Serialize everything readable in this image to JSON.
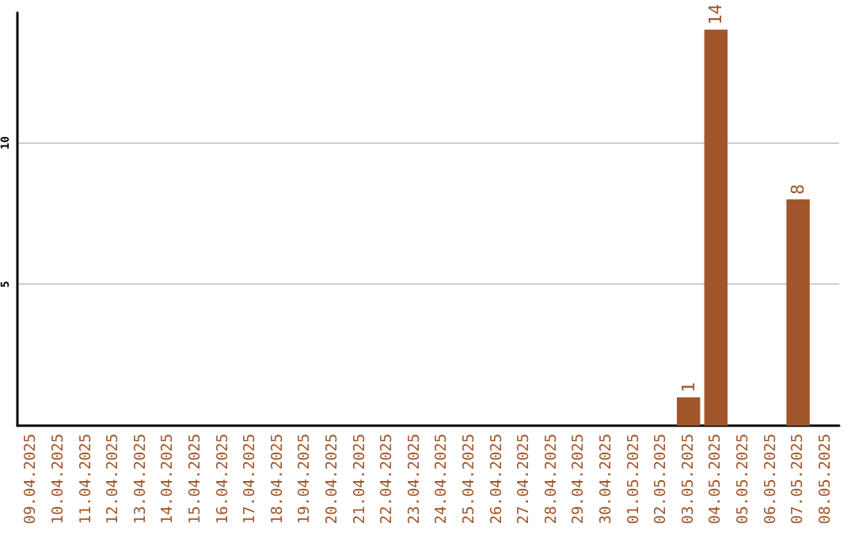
{
  "chart_data": {
    "type": "bar",
    "categories": [
      "09.04.2025",
      "10.04.2025",
      "11.04.2025",
      "12.04.2025",
      "13.04.2025",
      "14.04.2025",
      "15.04.2025",
      "16.04.2025",
      "17.04.2025",
      "18.04.2025",
      "19.04.2025",
      "20.04.2025",
      "21.04.2025",
      "22.04.2025",
      "23.04.2025",
      "24.04.2025",
      "25.04.2025",
      "26.04.2025",
      "27.04.2025",
      "28.04.2025",
      "29.04.2025",
      "30.04.2025",
      "01.05.2025",
      "02.05.2025",
      "03.05.2025",
      "04.05.2025",
      "05.05.2025",
      "06.05.2025",
      "07.05.2025",
      "08.05.2025"
    ],
    "values": [
      0,
      0,
      0,
      0,
      0,
      0,
      0,
      0,
      0,
      0,
      0,
      0,
      0,
      0,
      0,
      0,
      0,
      0,
      0,
      0,
      0,
      0,
      0,
      0,
      1,
      14,
      0,
      0,
      8,
      0
    ],
    "value_labels": [
      null,
      null,
      null,
      null,
      null,
      null,
      null,
      null,
      null,
      null,
      null,
      null,
      null,
      null,
      null,
      null,
      null,
      null,
      null,
      null,
      null,
      null,
      null,
      null,
      "1",
      "14",
      null,
      null,
      "8",
      null
    ],
    "color": "#a0562a",
    "ylim": [
      0,
      14.6
    ],
    "yticks": [
      5,
      10
    ],
    "grid": "y"
  }
}
